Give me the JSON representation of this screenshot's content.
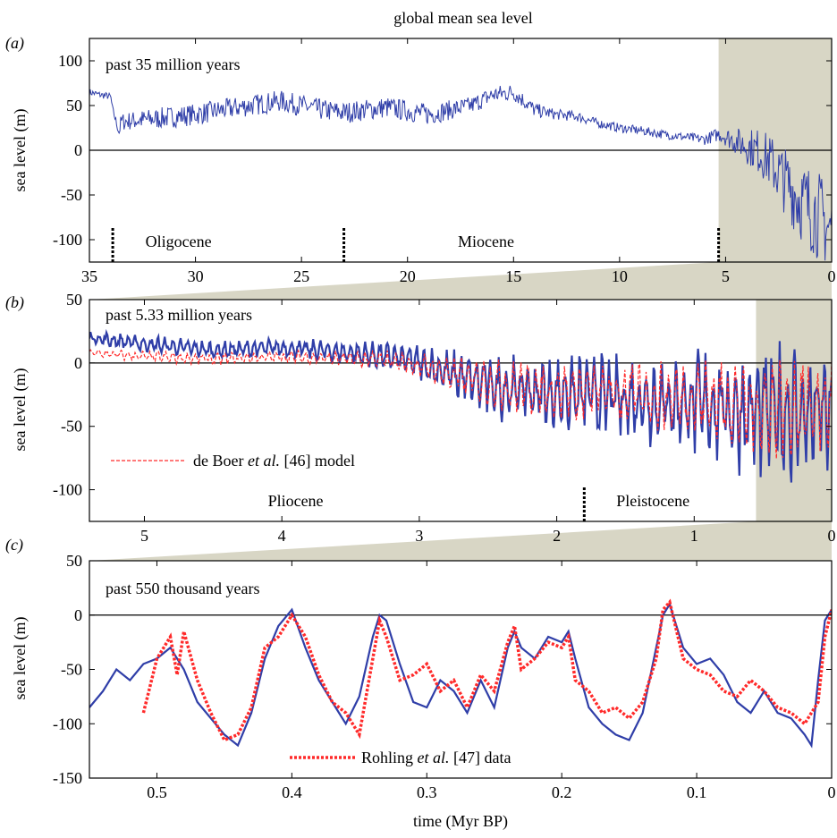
{
  "figure": {
    "title": "global mean sea level",
    "xlabel": "time (Myr BP)"
  },
  "colors": {
    "model": "#2f3ea8",
    "model_ref": "#ff2a2a",
    "shade": "#d8d6c5",
    "text": "#000000"
  },
  "chart_data": [
    {
      "panel": "(a)",
      "type": "line",
      "title": "past 35 million years",
      "ylabel": "sea level (m)",
      "xlim": [
        35,
        0
      ],
      "ylim": [
        -125,
        125
      ],
      "xticks": [
        35,
        30,
        25,
        20,
        15,
        10,
        5,
        0
      ],
      "yticks": [
        100,
        50,
        0,
        -50,
        -100
      ],
      "shaded_range": [
        5.33,
        0
      ],
      "epochs": [
        {
          "name": "Oligocene",
          "x": 30.8
        },
        {
          "name": "Miocene",
          "x": 16.3
        }
      ],
      "boundaries": [
        33.9,
        23.0,
        5.33
      ],
      "series": [
        {
          "x": [
            35,
            34.5,
            34.0,
            33.9,
            33.6,
            33.5,
            32,
            30,
            28,
            26,
            24,
            23,
            21,
            19,
            17,
            16,
            15,
            14,
            13,
            12,
            11,
            10,
            9,
            8,
            7,
            6,
            5.33,
            5,
            4.5,
            4,
            3.5,
            3,
            2.5,
            2,
            1.5,
            1,
            0.5,
            0.1,
            0
          ],
          "y": [
            65,
            62,
            60,
            45,
            20,
            32,
            35,
            40,
            48,
            55,
            45,
            42,
            48,
            40,
            50,
            62,
            65,
            45,
            40,
            38,
            30,
            25,
            22,
            18,
            15,
            12,
            18,
            15,
            10,
            5,
            0,
            -10,
            -25,
            -40,
            -55,
            -65,
            -75,
            -90,
            -80
          ],
          "amplitude": [
            4,
            4,
            4,
            4,
            6,
            10,
            12,
            12,
            12,
            12,
            12,
            12,
            12,
            12,
            10,
            10,
            10,
            8,
            6,
            6,
            5,
            5,
            5,
            5,
            5,
            6,
            8,
            10,
            15,
            20,
            25,
            30,
            35,
            40,
            45,
            50,
            50,
            45,
            30
          ]
        }
      ]
    },
    {
      "panel": "(b)",
      "type": "line",
      "title": "past 5.33 million years",
      "ylabel": "sea level (m)",
      "xlim": [
        5.4,
        0
      ],
      "ylim": [
        -125,
        50
      ],
      "xticks": [
        5,
        4,
        3,
        2,
        1,
        0
      ],
      "yticks": [
        50,
        0,
        -50,
        -100
      ],
      "shaded_range": [
        0.55,
        0
      ],
      "epochs": [
        {
          "name": "Pliocene",
          "x": 3.9
        },
        {
          "name": "Pleistocene",
          "x": 1.3
        }
      ],
      "boundaries": [
        1.8
      ],
      "legend": {
        "label": "de Boer et al. [46] model",
        "position": "lower-left"
      },
      "series": [
        {
          "name": "model",
          "x": [
            5.4,
            5,
            4.5,
            4,
            3.5,
            3.2,
            3.0,
            2.8,
            2.6,
            2.4,
            2.2,
            2,
            1.8,
            1.5,
            1.2,
            1.0,
            0.8,
            0.6,
            0.4,
            0.2,
            0
          ],
          "y": [
            20,
            15,
            10,
            12,
            8,
            5,
            0,
            -8,
            -15,
            -20,
            -22,
            -25,
            -25,
            -28,
            -30,
            -32,
            -35,
            -40,
            -40,
            -40,
            -40
          ],
          "amplitude": [
            6,
            8,
            8,
            8,
            10,
            12,
            15,
            20,
            25,
            28,
            30,
            32,
            35,
            38,
            42,
            45,
            50,
            55,
            60,
            60,
            55
          ]
        },
        {
          "name": "de Boer et al. [46] model",
          "x": [
            5.4,
            5,
            4.5,
            4,
            3.5,
            3.2,
            3.0,
            2.8,
            2.6,
            2.4,
            2.2,
            2,
            1.8,
            1.5,
            1.2,
            1.0,
            0.8,
            0.6,
            0.4,
            0.2,
            0
          ],
          "y": [
            8,
            5,
            3,
            5,
            3,
            2,
            -2,
            -8,
            -14,
            -18,
            -20,
            -22,
            -22,
            -25,
            -27,
            -28,
            -30,
            -35,
            -35,
            -35,
            -35
          ],
          "amplitude": [
            4,
            6,
            6,
            6,
            8,
            10,
            12,
            17,
            22,
            25,
            27,
            28,
            30,
            33,
            37,
            40,
            44,
            48,
            52,
            52,
            48
          ]
        }
      ]
    },
    {
      "panel": "(c)",
      "type": "line",
      "title": "past 550 thousand years",
      "ylabel": "sea level (m)",
      "xlim": [
        0.55,
        0
      ],
      "ylim": [
        -150,
        50
      ],
      "xticks": [
        0.5,
        0.4,
        0.3,
        0.2,
        0.1,
        0
      ],
      "yticks": [
        50,
        0,
        -50,
        -100,
        -150
      ],
      "legend": {
        "label": "Rohling et al. [47] data",
        "position": "bottom-center"
      },
      "series": [
        {
          "name": "model",
          "x": [
            0.55,
            0.54,
            0.53,
            0.52,
            0.51,
            0.5,
            0.49,
            0.48,
            0.47,
            0.46,
            0.45,
            0.44,
            0.43,
            0.42,
            0.41,
            0.4,
            0.39,
            0.38,
            0.37,
            0.36,
            0.35,
            0.34,
            0.335,
            0.33,
            0.32,
            0.31,
            0.3,
            0.29,
            0.28,
            0.27,
            0.26,
            0.25,
            0.24,
            0.235,
            0.23,
            0.22,
            0.21,
            0.2,
            0.195,
            0.19,
            0.18,
            0.17,
            0.16,
            0.15,
            0.14,
            0.13,
            0.125,
            0.12,
            0.11,
            0.1,
            0.09,
            0.08,
            0.07,
            0.06,
            0.05,
            0.04,
            0.03,
            0.02,
            0.015,
            0.01,
            0.005,
            0
          ],
          "y": [
            -85,
            -70,
            -50,
            -60,
            -45,
            -40,
            -30,
            -50,
            -80,
            -95,
            -110,
            -120,
            -90,
            -40,
            -10,
            5,
            -30,
            -60,
            -80,
            -100,
            -75,
            -20,
            0,
            -5,
            -45,
            -80,
            -85,
            -60,
            -70,
            -90,
            -60,
            -85,
            -30,
            -15,
            -30,
            -40,
            -20,
            -25,
            -15,
            -40,
            -85,
            -100,
            -110,
            -115,
            -90,
            -30,
            0,
            10,
            -30,
            -45,
            -40,
            -55,
            -80,
            -90,
            -70,
            -90,
            -95,
            -110,
            -120,
            -60,
            -5,
            5
          ]
        },
        {
          "name": "Rohling et al. [47] data",
          "x": [
            0.51,
            0.5,
            0.49,
            0.485,
            0.48,
            0.47,
            0.46,
            0.45,
            0.44,
            0.43,
            0.42,
            0.41,
            0.4,
            0.39,
            0.38,
            0.37,
            0.36,
            0.35,
            0.34,
            0.335,
            0.33,
            0.32,
            0.31,
            0.3,
            0.29,
            0.28,
            0.27,
            0.26,
            0.25,
            0.24,
            0.235,
            0.23,
            0.22,
            0.21,
            0.2,
            0.195,
            0.19,
            0.18,
            0.17,
            0.16,
            0.15,
            0.14,
            0.13,
            0.125,
            0.12,
            0.11,
            0.1,
            0.09,
            0.08,
            0.07,
            0.06,
            0.05,
            0.04,
            0.03,
            0.02,
            0.01,
            0.005,
            0
          ],
          "y": [
            -90,
            -40,
            -20,
            -55,
            -15,
            -60,
            -90,
            -115,
            -110,
            -85,
            -30,
            -20,
            0,
            -20,
            -55,
            -80,
            -90,
            -110,
            -40,
            -5,
            -20,
            -60,
            -55,
            -45,
            -70,
            -60,
            -85,
            -55,
            -70,
            -25,
            -10,
            -50,
            -40,
            -25,
            -30,
            -20,
            -60,
            -70,
            -90,
            -85,
            -95,
            -80,
            -40,
            5,
            12,
            -40,
            -50,
            -55,
            -70,
            -75,
            -60,
            -70,
            -85,
            -90,
            -100,
            -80,
            -20,
            5
          ]
        }
      ]
    }
  ]
}
